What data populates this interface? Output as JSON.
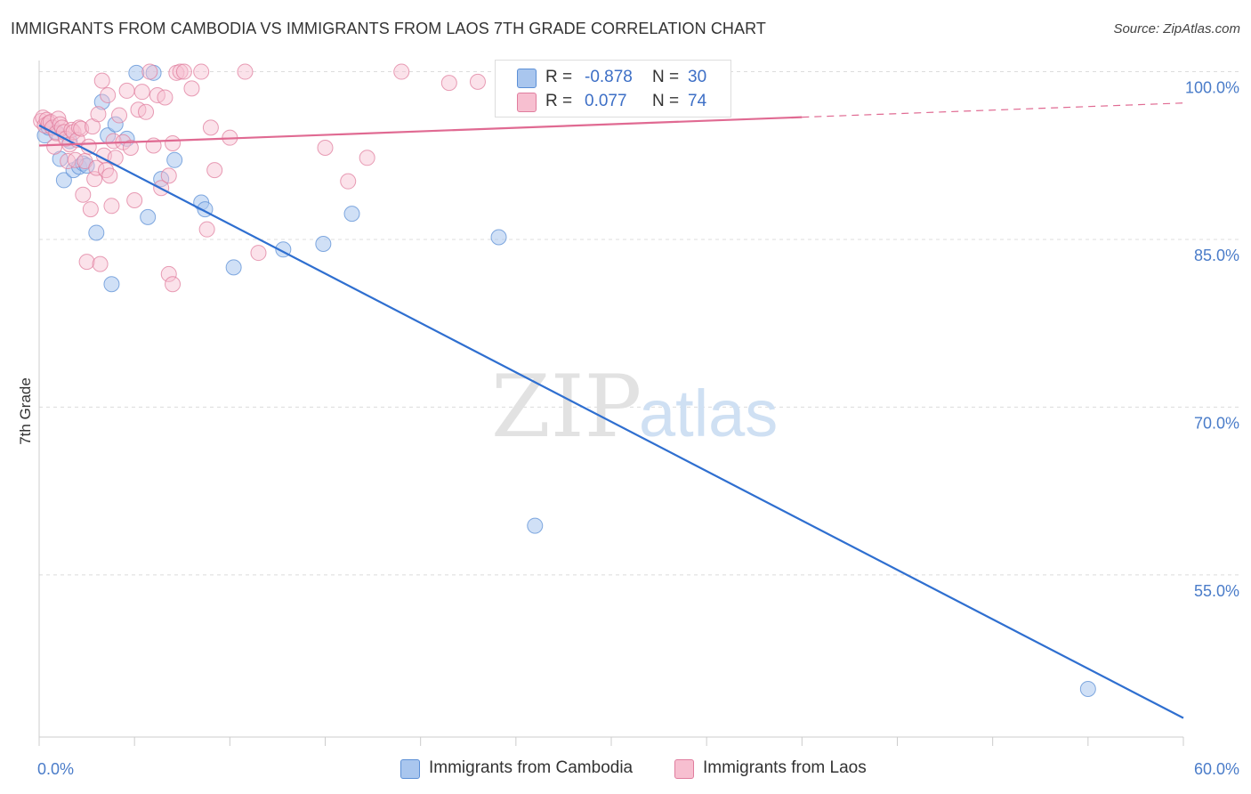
{
  "title": "IMMIGRANTS FROM CAMBODIA VS IMMIGRANTS FROM LAOS 7TH GRADE CORRELATION CHART",
  "source": "Source: ZipAtlas.com",
  "watermark": {
    "zip": "ZIP",
    "atlas": "atlas"
  },
  "legend": {
    "rows": [
      {
        "r_label": "R =",
        "r_value": "-0.878",
        "n_label": "N =",
        "n_value": "30",
        "color": "#a9c6ee",
        "border": "#5b8fd6"
      },
      {
        "r_label": "R =",
        "r_value": "0.077",
        "n_label": "N =",
        "n_value": "74",
        "color": "#f7bfd0",
        "border": "#e07d9e"
      }
    ]
  },
  "bottom_legend": [
    {
      "label": "Immigrants from Cambodia",
      "color": "#a9c6ee",
      "border": "#5b8fd6"
    },
    {
      "label": "Immigrants from Laos",
      "color": "#f7bfd0",
      "border": "#e07d9e"
    }
  ],
  "chart_data": {
    "type": "scatter",
    "ylabel": "7th Grade",
    "xlim": [
      0,
      60
    ],
    "ylim": [
      40.5,
      101
    ],
    "x_tick_labels": [
      {
        "value": 0,
        "label": "0.0%"
      },
      {
        "value": 60,
        "label": "60.0%"
      }
    ],
    "y_tick_labels": [
      {
        "value": 100,
        "label": "100.0%"
      },
      {
        "value": 85,
        "label": "85.0%"
      },
      {
        "value": 70,
        "label": "70.0%"
      },
      {
        "value": 55,
        "label": "55.0%"
      }
    ],
    "grid": true,
    "series": [
      {
        "name": "Immigrants from Cambodia",
        "color": "#5b8fd6",
        "fill": "#a9c6ee",
        "trend": {
          "x0": 0,
          "y0": 95.2,
          "x1": 60,
          "y1": 42.2,
          "dashed_from": null,
          "color": "#2f6fd0"
        },
        "points": [
          [
            0.3,
            94.3
          ],
          [
            0.5,
            95.0
          ],
          [
            0.9,
            94.6
          ],
          [
            1.1,
            92.2
          ],
          [
            1.3,
            90.3
          ],
          [
            1.6,
            93.8
          ],
          [
            1.8,
            91.2
          ],
          [
            2.1,
            91.5
          ],
          [
            2.3,
            91.8
          ],
          [
            2.5,
            91.6
          ],
          [
            3.0,
            85.6
          ],
          [
            3.3,
            97.3
          ],
          [
            3.6,
            94.3
          ],
          [
            3.8,
            81.0
          ],
          [
            4.0,
            95.3
          ],
          [
            4.6,
            94.0
          ],
          [
            5.1,
            99.9
          ],
          [
            5.7,
            87.0
          ],
          [
            6.0,
            99.9
          ],
          [
            6.4,
            90.4
          ],
          [
            7.1,
            92.1
          ],
          [
            8.5,
            88.3
          ],
          [
            8.7,
            87.7
          ],
          [
            10.2,
            82.5
          ],
          [
            12.8,
            84.1
          ],
          [
            14.9,
            84.6
          ],
          [
            16.4,
            87.3
          ],
          [
            24.1,
            85.2
          ],
          [
            26.0,
            59.4
          ],
          [
            55.0,
            44.8
          ]
        ]
      },
      {
        "name": "Immigrants from Laos",
        "color": "#e07d9e",
        "fill": "#f7bfd0",
        "trend": {
          "x0": 0,
          "y0": 93.4,
          "x1": 60,
          "y1": 97.2,
          "dashed_from": 40,
          "color": "#e06a92"
        },
        "points": [
          [
            0.1,
            95.6
          ],
          [
            0.2,
            95.9
          ],
          [
            0.3,
            95.2
          ],
          [
            0.4,
            95.7
          ],
          [
            0.5,
            95.4
          ],
          [
            0.6,
            95.5
          ],
          [
            0.7,
            95.0
          ],
          [
            0.8,
            93.3
          ],
          [
            0.9,
            94.5
          ],
          [
            1.0,
            95.8
          ],
          [
            1.1,
            95.3
          ],
          [
            1.2,
            95.0
          ],
          [
            1.3,
            94.6
          ],
          [
            1.4,
            94.0
          ],
          [
            1.5,
            92.0
          ],
          [
            1.6,
            93.5
          ],
          [
            1.7,
            94.8
          ],
          [
            1.8,
            94.6
          ],
          [
            1.9,
            92.1
          ],
          [
            2.0,
            93.9
          ],
          [
            2.1,
            95.0
          ],
          [
            2.2,
            94.9
          ],
          [
            2.3,
            89.0
          ],
          [
            2.4,
            92.0
          ],
          [
            2.5,
            83.0
          ],
          [
            2.6,
            93.3
          ],
          [
            2.7,
            87.7
          ],
          [
            2.8,
            95.1
          ],
          [
            2.9,
            90.4
          ],
          [
            3.0,
            91.4
          ],
          [
            3.1,
            96.2
          ],
          [
            3.2,
            82.8
          ],
          [
            3.3,
            99.2
          ],
          [
            3.4,
            92.5
          ],
          [
            3.5,
            91.2
          ],
          [
            3.6,
            97.9
          ],
          [
            3.7,
            90.7
          ],
          [
            3.8,
            88.0
          ],
          [
            3.9,
            93.8
          ],
          [
            4.0,
            92.3
          ],
          [
            4.2,
            96.1
          ],
          [
            4.4,
            93.7
          ],
          [
            4.6,
            98.3
          ],
          [
            4.8,
            93.2
          ],
          [
            5.0,
            88.5
          ],
          [
            5.2,
            96.6
          ],
          [
            5.4,
            98.2
          ],
          [
            5.6,
            96.4
          ],
          [
            5.8,
            100.0
          ],
          [
            6.0,
            93.4
          ],
          [
            6.2,
            97.9
          ],
          [
            6.4,
            89.6
          ],
          [
            6.6,
            97.7
          ],
          [
            6.8,
            90.7
          ],
          [
            7.0,
            93.6
          ],
          [
            6.8,
            81.9
          ],
          [
            7.0,
            81.0
          ],
          [
            7.2,
            99.9
          ],
          [
            7.4,
            100.0
          ],
          [
            7.6,
            100.0
          ],
          [
            8.0,
            98.5
          ],
          [
            8.5,
            100.0
          ],
          [
            8.8,
            85.9
          ],
          [
            9.0,
            95.0
          ],
          [
            9.2,
            91.2
          ],
          [
            10.0,
            94.1
          ],
          [
            10.8,
            100.0
          ],
          [
            11.5,
            83.8
          ],
          [
            15.0,
            93.2
          ],
          [
            16.2,
            90.2
          ],
          [
            17.2,
            92.3
          ],
          [
            19.0,
            100.0
          ],
          [
            21.5,
            99.0
          ],
          [
            23.0,
            99.1
          ]
        ]
      }
    ]
  }
}
